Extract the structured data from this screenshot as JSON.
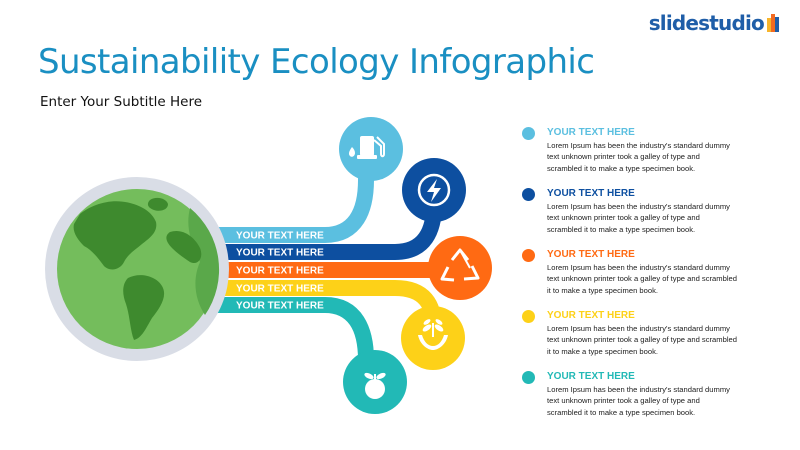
{
  "brand": {
    "logo_text": "slidestudio"
  },
  "slide": {
    "title": "Sustainability Ecology Infographic",
    "subtitle": "Enter Your Subtitle Here"
  },
  "diagram": {
    "center_icon": "globe-icon",
    "bands": [
      {
        "label": "YOUR TEXT HERE",
        "color": "#5bbfe0",
        "icon": "fuel-pump-icon"
      },
      {
        "label": "YOUR TEXT HERE",
        "color": "#0d4fa0",
        "icon": "lightning-icon"
      },
      {
        "label": "YOUR TEXT HERE",
        "color": "#ff6a13",
        "icon": "recycle-icon"
      },
      {
        "label": "YOUR TEXT HERE",
        "color": "#fdd118",
        "icon": "hand-plant-icon"
      },
      {
        "label": "YOUR TEXT HERE",
        "color": "#22b9b6",
        "icon": "apple-icon"
      }
    ]
  },
  "legend": [
    {
      "heading": "YOUR TEXT HERE",
      "color": "#5bbfe0",
      "lines": [
        "Lorem Ipsum has been the industry's standard dummy",
        "text unknown printer took a galley of type and",
        "scrambled it to make a type specimen book."
      ]
    },
    {
      "heading": "YOUR TEXT HERE",
      "color": "#0d4fa0",
      "lines": [
        "Lorem Ipsum has been the industry's standard dummy",
        "text unknown printer took a galley of type and",
        "scrambled it to make a type specimen book."
      ]
    },
    {
      "heading": "YOUR TEXT HERE",
      "color": "#ff6a13",
      "lines": [
        "Lorem Ipsum has been the industry's standard dummy",
        "text unknown printer took a galley of type and scrambled",
        "it to make a type specimen book."
      ]
    },
    {
      "heading": "YOUR TEXT HERE",
      "color": "#fdd118",
      "lines": [
        "Lorem Ipsum has been the industry's standard dummy",
        "text unknown printer took a galley of type and scrambled",
        "it to make a type specimen book."
      ]
    },
    {
      "heading": "YOUR TEXT HERE",
      "color": "#22b9b6",
      "lines": [
        "Lorem Ipsum has been the industry's standard dummy",
        "text unknown printer took a galley of type and",
        "scrambled it to make a type specimen book."
      ]
    }
  ]
}
